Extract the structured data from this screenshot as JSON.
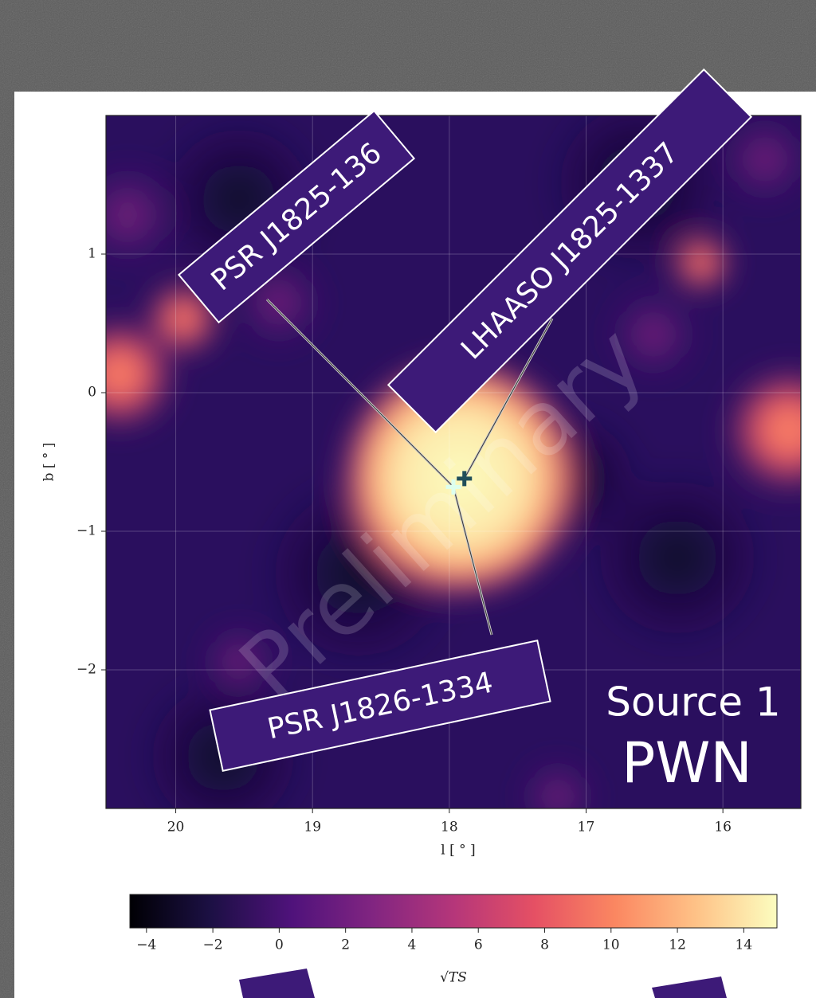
{
  "chart_data": {
    "type": "heatmap",
    "xlabel": "l [ ° ]",
    "ylabel": "b [ ° ]",
    "xlim": [
      20.51,
      15.43
    ],
    "ylim": [
      -3.0,
      2.0
    ],
    "xticks": [
      20,
      19,
      18,
      17,
      16
    ],
    "yticks": [
      1,
      0,
      {
        "value": -1,
        "label": "−1"
      },
      {
        "value": -2,
        "label": "−2"
      }
    ],
    "grid": true,
    "colormap": "magma",
    "colorbar_label": "√TS",
    "clim": [
      -4.5,
      15.0
    ],
    "colorbar_ticks": [
      {
        "value": -4,
        "label": "−4"
      },
      {
        "value": -2,
        "label": "−2"
      },
      0,
      2,
      4,
      6,
      8,
      10,
      12,
      14
    ],
    "markers": {
      "x": [
        17.97,
        17.89
      ],
      "y": [
        -0.68,
        -0.62
      ]
    },
    "annotations": [
      "PSR J1825-136",
      "LHAASO J1825-1337",
      "PSR J1826-1334"
    ],
    "source_label": "Source 1",
    "source_type": "PWN",
    "watermark": "Preliminary"
  }
}
